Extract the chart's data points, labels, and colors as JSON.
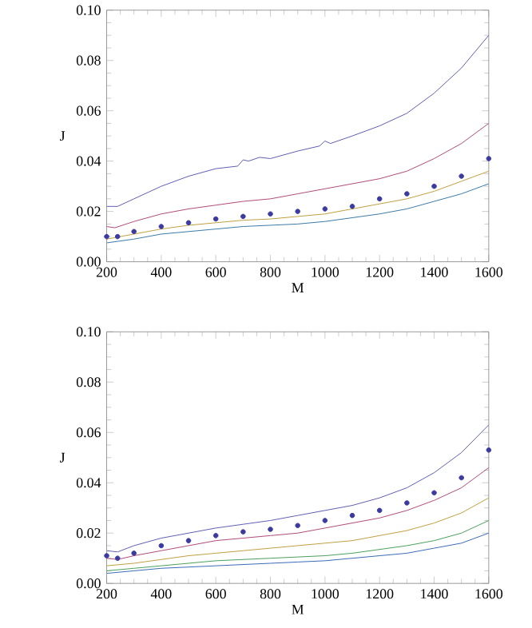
{
  "chart_data": [
    {
      "type": "line",
      "xlabel": "M",
      "ylabel": "J",
      "xlim": [
        200,
        1600
      ],
      "ylim": [
        0,
        0.1
      ],
      "xticks": [
        200,
        400,
        600,
        800,
        1000,
        1200,
        1400,
        1600
      ],
      "yticks": [
        {
          "value": 0,
          "label": "0.00"
        },
        {
          "value": 0.02,
          "label": "0.02"
        },
        {
          "value": 0.04,
          "label": "0.04"
        },
        {
          "value": 0.06,
          "label": "0.06"
        },
        {
          "value": 0.08,
          "label": "0.08"
        },
        {
          "value": 0.1,
          "label": "0.10"
        }
      ],
      "marker": "none",
      "series": [
        {
          "color": "#5e5eb5",
          "x": [
            200,
            240,
            300,
            400,
            500,
            600,
            680,
            700,
            720,
            760,
            800,
            900,
            980,
            1000,
            1020,
            1100,
            1200,
            1300,
            1400,
            1500,
            1600
          ],
          "values": [
            0.022,
            0.022,
            0.025,
            0.03,
            0.034,
            0.037,
            0.038,
            0.0405,
            0.04,
            0.0415,
            0.041,
            0.044,
            0.046,
            0.048,
            0.047,
            0.05,
            0.054,
            0.059,
            0.067,
            0.077,
            0.09
          ]
        },
        {
          "color": "#b04a7a",
          "x": [
            200,
            230,
            300,
            400,
            500,
            600,
            700,
            800,
            900,
            1000,
            1100,
            1200,
            1300,
            1400,
            1500,
            1600
          ],
          "values": [
            0.014,
            0.0135,
            0.016,
            0.019,
            0.021,
            0.0225,
            0.024,
            0.025,
            0.027,
            0.029,
            0.031,
            0.033,
            0.036,
            0.041,
            0.047,
            0.055
          ]
        },
        {
          "color": "#c0a040",
          "x": [
            200,
            300,
            400,
            500,
            600,
            700,
            800,
            900,
            1000,
            1100,
            1200,
            1300,
            1400,
            1500,
            1600
          ],
          "values": [
            0.009,
            0.011,
            0.013,
            0.0145,
            0.0155,
            0.0165,
            0.017,
            0.018,
            0.019,
            0.021,
            0.023,
            0.025,
            0.028,
            0.032,
            0.036
          ]
        },
        {
          "color": "#3a7aa8",
          "x": [
            200,
            300,
            400,
            500,
            600,
            700,
            800,
            900,
            1000,
            1100,
            1200,
            1300,
            1400,
            1500,
            1600
          ],
          "values": [
            0.0075,
            0.009,
            0.011,
            0.012,
            0.013,
            0.014,
            0.0145,
            0.015,
            0.016,
            0.0175,
            0.019,
            0.021,
            0.024,
            0.027,
            0.031
          ]
        },
        {
          "type": "scatter",
          "marker": "circle",
          "color": "#3a3aa0",
          "x": [
            200,
            240,
            300,
            400,
            500,
            600,
            700,
            800,
            900,
            1000,
            1100,
            1200,
            1300,
            1400,
            1500,
            1600
          ],
          "values": [
            0.01,
            0.01,
            0.012,
            0.014,
            0.0155,
            0.017,
            0.018,
            0.019,
            0.02,
            0.021,
            0.022,
            0.025,
            0.027,
            0.03,
            0.034,
            0.041
          ]
        }
      ]
    },
    {
      "type": "line",
      "xlabel": "M",
      "ylabel": "J",
      "xlim": [
        200,
        1600
      ],
      "ylim": [
        0,
        0.1
      ],
      "xticks": [
        200,
        400,
        600,
        800,
        1000,
        1200,
        1400,
        1600
      ],
      "yticks": [
        {
          "value": 0,
          "label": "0.00"
        },
        {
          "value": 0.02,
          "label": "0.02"
        },
        {
          "value": 0.04,
          "label": "0.04"
        },
        {
          "value": 0.06,
          "label": "0.06"
        },
        {
          "value": 0.08,
          "label": "0.08"
        },
        {
          "value": 0.1,
          "label": "0.10"
        }
      ],
      "marker": "none",
      "series": [
        {
          "color": "#5e5eb5",
          "x": [
            200,
            240,
            300,
            400,
            500,
            600,
            700,
            800,
            900,
            1000,
            1100,
            1200,
            1300,
            1400,
            1500,
            1600
          ],
          "values": [
            0.013,
            0.0125,
            0.015,
            0.018,
            0.02,
            0.022,
            0.0235,
            0.025,
            0.027,
            0.029,
            0.031,
            0.034,
            0.038,
            0.044,
            0.052,
            0.063
          ]
        },
        {
          "color": "#b04a7a",
          "x": [
            200,
            240,
            300,
            400,
            500,
            600,
            700,
            800,
            900,
            1000,
            1100,
            1200,
            1300,
            1400,
            1500,
            1600
          ],
          "values": [
            0.01,
            0.0095,
            0.011,
            0.013,
            0.015,
            0.017,
            0.018,
            0.019,
            0.02,
            0.022,
            0.024,
            0.026,
            0.029,
            0.033,
            0.038,
            0.046
          ]
        },
        {
          "color": "#c0a040",
          "x": [
            200,
            300,
            400,
            500,
            600,
            700,
            800,
            900,
            1000,
            1100,
            1200,
            1300,
            1400,
            1500,
            1600
          ],
          "values": [
            0.007,
            0.008,
            0.0095,
            0.011,
            0.012,
            0.013,
            0.014,
            0.015,
            0.016,
            0.017,
            0.019,
            0.021,
            0.024,
            0.028,
            0.034
          ]
        },
        {
          "color": "#4aa05a",
          "x": [
            200,
            300,
            400,
            500,
            600,
            700,
            800,
            900,
            1000,
            1100,
            1200,
            1300,
            1400,
            1500,
            1600
          ],
          "values": [
            0.005,
            0.006,
            0.007,
            0.008,
            0.009,
            0.0095,
            0.01,
            0.0105,
            0.011,
            0.012,
            0.0135,
            0.015,
            0.017,
            0.02,
            0.025
          ]
        },
        {
          "color": "#3a6ab8",
          "x": [
            200,
            300,
            400,
            500,
            600,
            700,
            800,
            900,
            1000,
            1100,
            1200,
            1300,
            1400,
            1500,
            1600
          ],
          "values": [
            0.004,
            0.005,
            0.006,
            0.0065,
            0.007,
            0.0075,
            0.008,
            0.0085,
            0.009,
            0.01,
            0.011,
            0.012,
            0.014,
            0.016,
            0.02
          ]
        },
        {
          "type": "scatter",
          "marker": "circle",
          "color": "#3a3aa0",
          "x": [
            200,
            240,
            300,
            400,
            500,
            600,
            700,
            800,
            900,
            1000,
            1100,
            1200,
            1300,
            1400,
            1500,
            1600
          ],
          "values": [
            0.011,
            0.01,
            0.012,
            0.015,
            0.017,
            0.019,
            0.0205,
            0.0215,
            0.023,
            0.025,
            0.027,
            0.029,
            0.032,
            0.036,
            0.042,
            0.053
          ]
        }
      ]
    }
  ]
}
